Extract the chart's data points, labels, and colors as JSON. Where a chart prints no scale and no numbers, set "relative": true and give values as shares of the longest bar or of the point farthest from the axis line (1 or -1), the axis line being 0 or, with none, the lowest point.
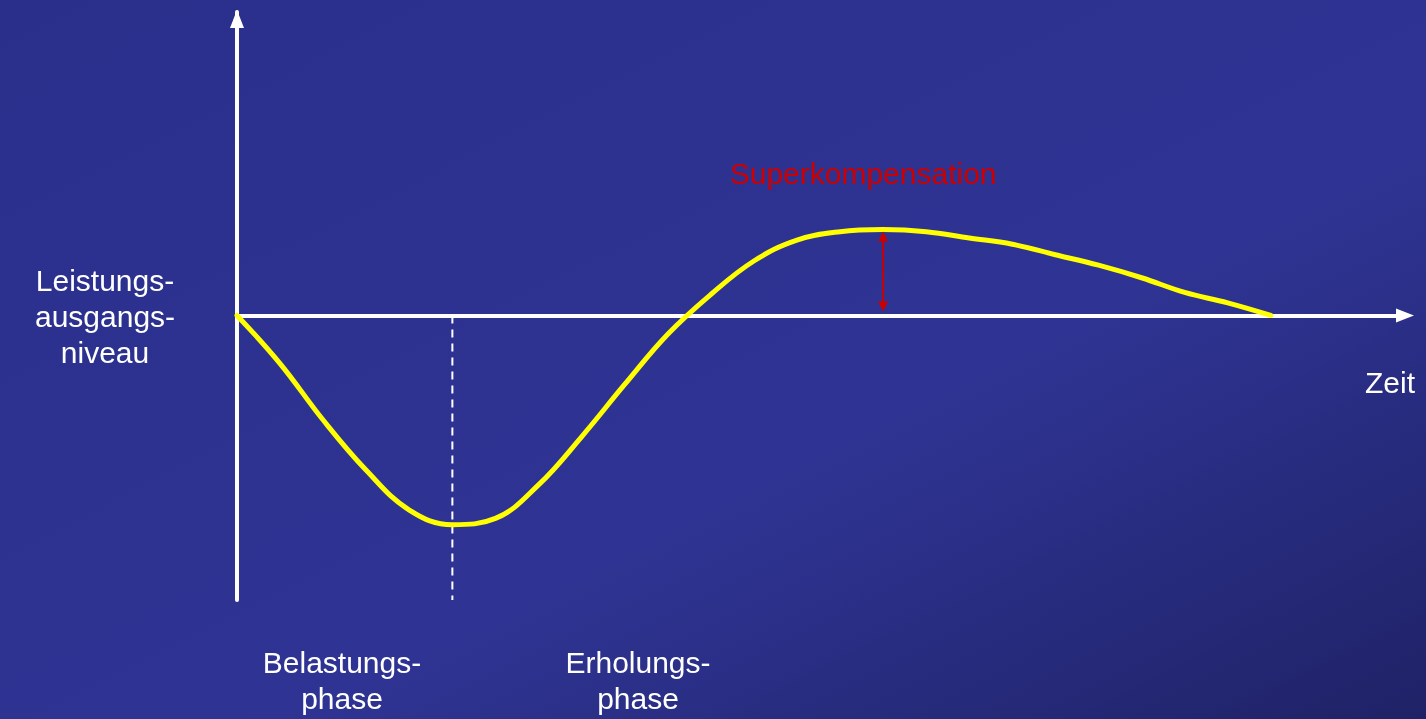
{
  "chart_data": {
    "type": "line",
    "relative": true,
    "ylabel": "Leistungs-\nausgangs-\nniveau",
    "xlabel": "Zeit",
    "annotations": [
      "Superkompensation",
      "Belastungs-\nphase",
      "Erholungs-\nphase"
    ],
    "categories": [
      null,
      null,
      null,
      null,
      null,
      null,
      null,
      null,
      null,
      null,
      null,
      null,
      null,
      null,
      null,
      null,
      null,
      null,
      null,
      null,
      null,
      null,
      null,
      null,
      null,
      null,
      null,
      null
    ],
    "series": [
      {
        "color": "#ffff00",
        "values": [
          0,
          -0.23,
          -0.5,
          -0.74,
          -0.93,
          -1,
          -0.97,
          -0.81,
          -0.58,
          -0.33,
          -0.09,
          0.1,
          0.26,
          0.36,
          0.4,
          0.41,
          0.4,
          0.37,
          0.34,
          0.29,
          0.24,
          0.18,
          0.11,
          0.06,
          0,
          null,
          null,
          null
        ]
      }
    ],
    "marker": "none",
    "line_style": "solid"
  }
}
